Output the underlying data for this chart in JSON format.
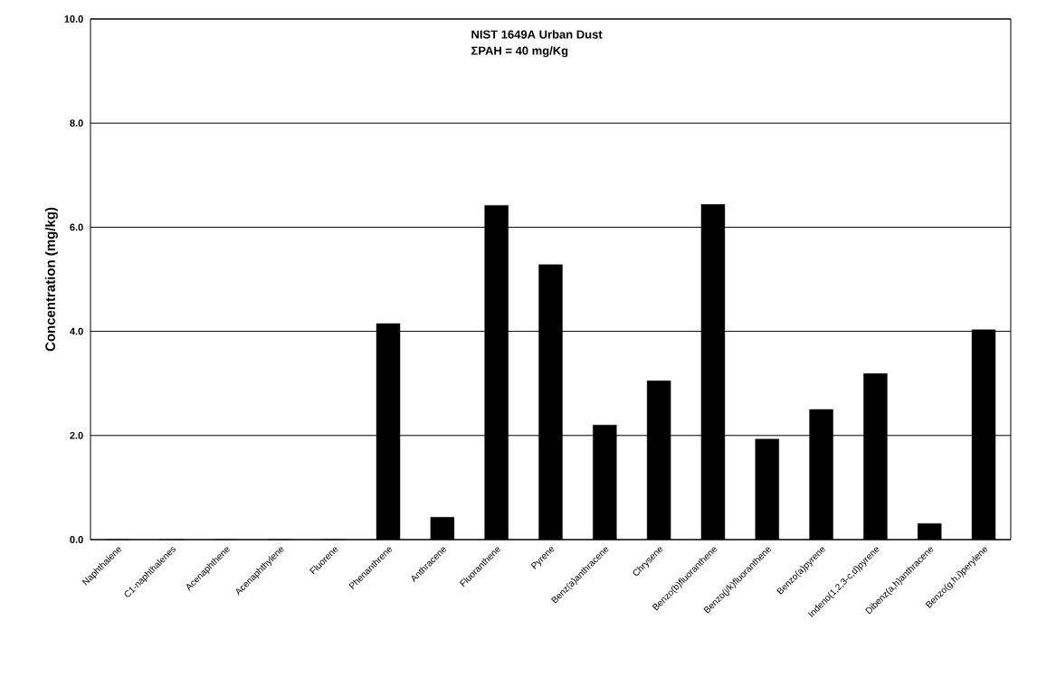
{
  "chart_data": {
    "type": "bar",
    "ylabel": "Concentration (mg/kg)",
    "annotations": [
      "NIST 1649A Urban Dust",
      "ΣPAH = 40 mg/Kg"
    ],
    "categories": [
      "Naphthalene",
      "C1-naphthalenes",
      "Acenaphthene",
      "Acenaphthylene",
      "Fluorene",
      "Phenanthrene",
      "Anthracene",
      "Fluoranthene",
      "Pyrene",
      "Benz(a)anthracene",
      "Chrysene",
      "Benzo(b)fluoranthene",
      "Benzo(j/k)fluoranthene",
      "Benzo(a)pyrene",
      "Indeno(1,2,3-c,d)pyrene",
      "Dibenz(a,h)anthracene",
      "Benzo(g,h,i)perylene"
    ],
    "values": [
      0,
      0,
      0,
      0,
      0,
      4.15,
      0.43,
      6.42,
      5.28,
      2.2,
      3.05,
      6.44,
      1.93,
      2.5,
      3.19,
      0.31,
      4.03
    ],
    "color": "#000000",
    "ylim": [
      0,
      10
    ],
    "yticks": [
      {
        "value": 0,
        "label": "0.0"
      },
      {
        "value": 2,
        "label": "2.0"
      },
      {
        "value": 4,
        "label": "4.0"
      },
      {
        "value": 6,
        "label": "6.0"
      },
      {
        "value": 8,
        "label": "8.0"
      },
      {
        "value": 10,
        "label": "10.0"
      }
    ],
    "grid": "y"
  }
}
